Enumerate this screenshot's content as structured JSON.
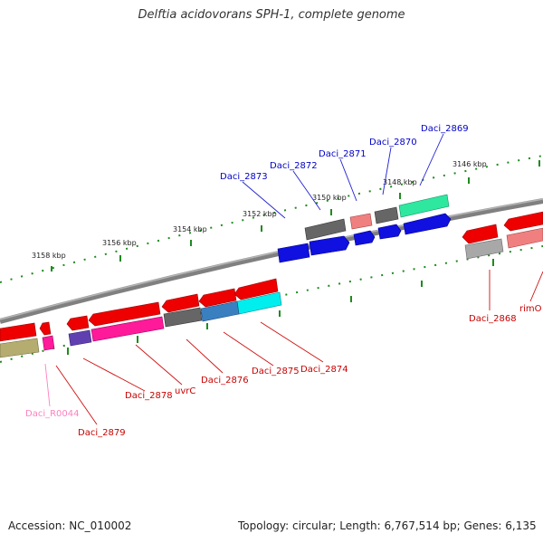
{
  "title": "Delftia acidovorans SPH-1, complete genome",
  "footer": {
    "accession": "Accession: NC_010002",
    "summary": "Topology: circular; Length: 6,767,514 bp; Genes: 6,135"
  },
  "colors": {
    "backbone": "#7d7d7d",
    "tick": "#1f8a1f",
    "forward_label": "#0000c8",
    "reverse_label": "#c80000",
    "rna_label": "#ff7fbf"
  },
  "ruler_labels": {
    "k3158": "3158 kbp",
    "k3156": "3156 kbp",
    "k3154": "3154 kbp",
    "k3152": "3152 kbp",
    "k3150": "3150 kbp",
    "k3148": "3148 kbp",
    "k3146": "3146 kbp"
  },
  "gene_labels": {
    "daci_2873": "Daci_2873",
    "daci_2872": "Daci_2872",
    "daci_2871": "Daci_2871",
    "daci_2870": "Daci_2870",
    "daci_2869": "Daci_2869",
    "daci_2868": "Daci_2868",
    "rimo": "rimO",
    "daci_2874": "Daci_2874",
    "daci_2875": "Daci_2875",
    "daci_2876": "Daci_2876",
    "uvrc": "uvrC",
    "daci_2878": "Daci_2878",
    "daci_2879": "Daci_2879",
    "daci_r0044": "Daci_R0044"
  }
}
